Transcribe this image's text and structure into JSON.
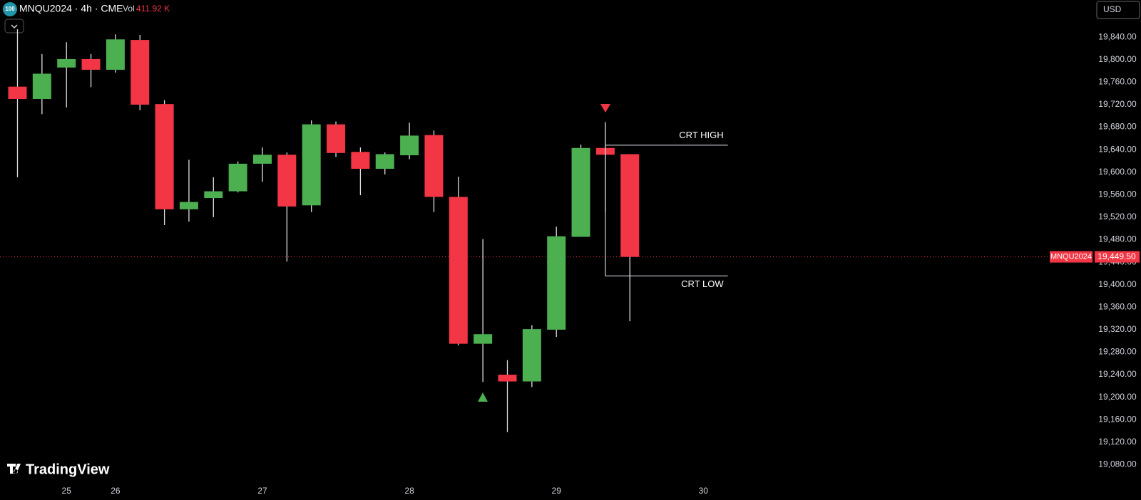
{
  "chart_data": {
    "type": "candlestick",
    "title": "MNQU2024 · 4h · CME",
    "badge": "100",
    "volume_label": "Vol",
    "volume_value": "411.92 K",
    "currency": "USD",
    "brand": "TradingView",
    "up_color": "#4caf50",
    "down_color": "#f23645",
    "categories": [
      null,
      null,
      "25",
      null,
      "26",
      null,
      null,
      null,
      null,
      null,
      "27",
      null,
      null,
      null,
      null,
      null,
      "28",
      null,
      null,
      null,
      null,
      null,
      "29",
      null,
      null,
      null,
      null,
      null,
      "30"
    ],
    "open": [
      19752,
      19730,
      19786,
      19801,
      19782,
      19835,
      19721,
      19534,
      19554,
      19566,
      19615,
      19631,
      19541,
      19685,
      19636,
      19606,
      19630,
      19666,
      19556,
      19295,
      19240,
      19228,
      19320,
      19485,
      19643,
      19632,
      null,
      null,
      null
    ],
    "high": [
      19854,
      19810,
      19831,
      19810,
      19845,
      19844,
      19728,
      19622,
      19591,
      19619,
      19644,
      19635,
      19692,
      19690,
      19644,
      19635,
      19688,
      19674,
      19592,
      19481,
      19266,
      19328,
      19503,
      19649,
      19689,
      19632,
      null,
      null,
      null
    ],
    "low": [
      19591,
      19703,
      19715,
      19751,
      19777,
      19710,
      19506,
      19512,
      19520,
      19564,
      19583,
      19441,
      19529,
      19627,
      19559,
      19596,
      19623,
      19529,
      19292,
      19227,
      19138,
      19218,
      19307,
      19485,
      19529,
      19335,
      null,
      null,
      null
    ],
    "close": [
      19730,
      19775,
      19801,
      19782,
      19836,
      19720,
      19534,
      19547,
      19566,
      19615,
      19631,
      19539,
      19685,
      19634,
      19606,
      19632,
      19665,
      19556,
      19295,
      19312,
      19228,
      19321,
      19486,
      19643,
      19631,
      19449.5,
      null,
      null,
      null
    ],
    "ylim": [
      19054,
      19906
    ],
    "yticks": [
      {
        "value": 19080,
        "label": "19,080.00"
      },
      {
        "value": 19120,
        "label": "19,120.00"
      },
      {
        "value": 19160,
        "label": "19,160.00"
      },
      {
        "value": 19200,
        "label": "19,200.00"
      },
      {
        "value": 19240,
        "label": "19,240.00"
      },
      {
        "value": 19280,
        "label": "19,280.00"
      },
      {
        "value": 19320,
        "label": "19,320.00"
      },
      {
        "value": 19360,
        "label": "19,360.00"
      },
      {
        "value": 19400,
        "label": "19,400.00"
      },
      {
        "value": 19440,
        "label": "19,440.00"
      },
      {
        "value": 19480,
        "label": "19,480.00"
      },
      {
        "value": 19520,
        "label": "19,520.00"
      },
      {
        "value": 19560,
        "label": "19,560.00"
      },
      {
        "value": 19600,
        "label": "19,600.00"
      },
      {
        "value": 19640,
        "label": "19,640.00"
      },
      {
        "value": 19680,
        "label": "19,680.00"
      },
      {
        "value": 19720,
        "label": "19,720.00"
      },
      {
        "value": 19760,
        "label": "19,760.00"
      },
      {
        "value": 19800,
        "label": "19,800.00"
      },
      {
        "value": 19840,
        "label": "19,840.00"
      }
    ],
    "last_price": {
      "value": 19449.5,
      "label": "19,449.50",
      "symbol": "MNQU2024"
    },
    "crt_high": {
      "value": 19648,
      "label": "CRT HIGH"
    },
    "crt_low": {
      "value": 19415.5,
      "label": "CRT LOW"
    }
  }
}
